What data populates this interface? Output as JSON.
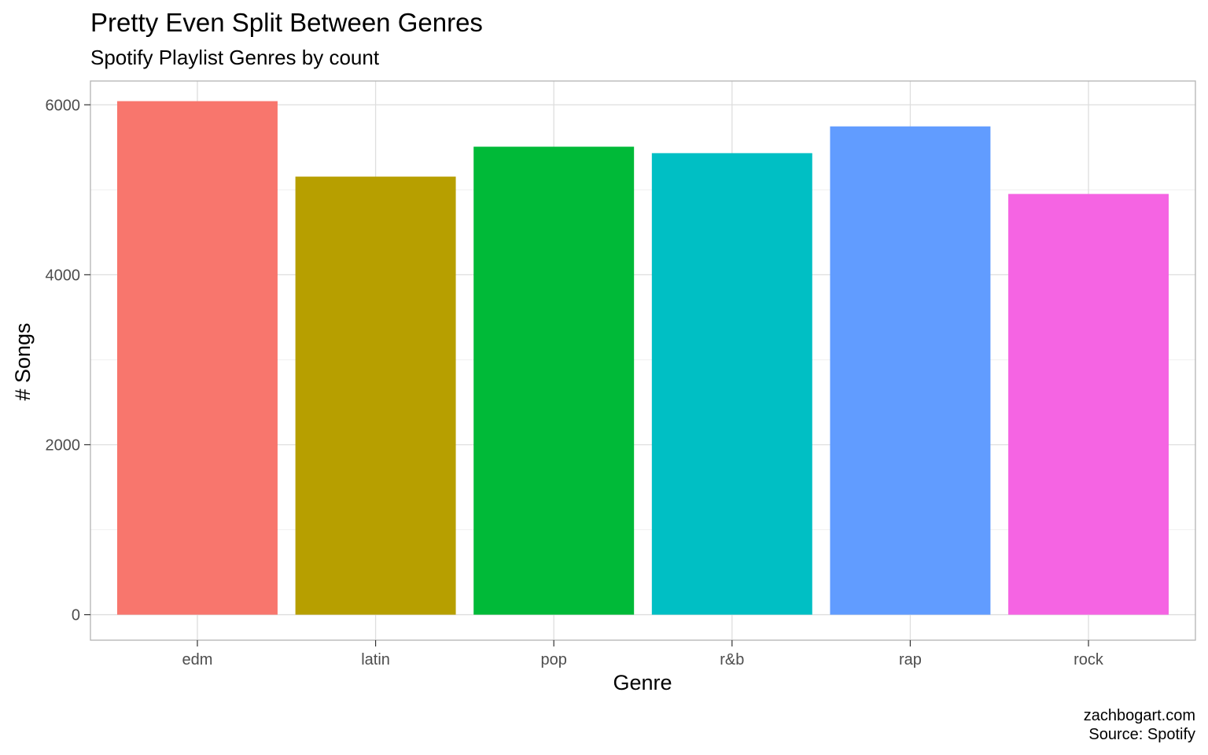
{
  "chart_data": {
    "type": "bar",
    "title": "Pretty Even Split Between Genres",
    "subtitle": "Spotify Playlist Genres by count",
    "xlabel": "Genre",
    "ylabel": "# Songs",
    "categories": [
      "edm",
      "latin",
      "pop",
      "r&b",
      "rap",
      "rock"
    ],
    "values": [
      6043,
      5155,
      5507,
      5431,
      5746,
      4951
    ],
    "colors": [
      "#F8766D",
      "#B79F00",
      "#00BA38",
      "#00BFC4",
      "#619CFF",
      "#F564E3"
    ],
    "ylim": [
      -300,
      6280
    ],
    "yticks": [
      0,
      2000,
      4000,
      6000
    ],
    "grid": true,
    "legend": "none",
    "caption": [
      "zachbogart.com",
      "Source: Spotify"
    ]
  }
}
